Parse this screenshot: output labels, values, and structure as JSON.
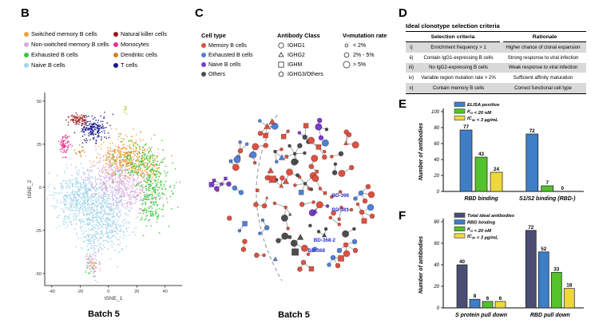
{
  "panels": {
    "b": {
      "label": "B",
      "caption": "Batch 5",
      "legend_col1": [
        {
          "label": "Switched memory B cells",
          "color": "#f2a136"
        },
        {
          "label": "Non-switched memory B cells",
          "color": "#dda6de"
        },
        {
          "label": "Exhausted B cells",
          "color": "#33cb33"
        },
        {
          "label": "Naive B cells",
          "color": "#a3d5e9"
        }
      ],
      "legend_col2": [
        {
          "label": "Natural killer cells",
          "color": "#991717"
        },
        {
          "label": "Monocytes",
          "color": "#ef2f8e"
        },
        {
          "label": "Dendritic cells",
          "color": "#d9801f"
        },
        {
          "label": "T cells",
          "color": "#19198e"
        }
      ]
    },
    "c": {
      "label": "C",
      "caption": "Batch 5",
      "cell_type": {
        "header": "Cell type",
        "items": [
          {
            "label": "Memory B cells",
            "color": "#dd5140"
          },
          {
            "label": "Exhausted B cells",
            "color": "#5080d2"
          },
          {
            "label": "Naive B cells",
            "color": "#7b3bcb"
          },
          {
            "label": "Others",
            "color": "#4d4d4d"
          }
        ]
      },
      "antibody_class": {
        "header": "Antibody Class",
        "items": [
          {
            "label": "IGHG1",
            "shape": "circle"
          },
          {
            "label": "IGHG2",
            "shape": "triangle"
          },
          {
            "label": "IGHM",
            "shape": "square"
          },
          {
            "label": "IGHG3/Others",
            "shape": "pentagon"
          }
        ]
      },
      "mutation_rate": {
        "header": "VH mutation rate",
        "header_parts": [
          [
            "t",
            "V"
          ],
          [
            "s",
            "H"
          ],
          [
            "t",
            " mutation rate"
          ]
        ],
        "items": [
          {
            "label": "< 2%",
            "size": 1.9
          },
          {
            "label": "2% - 5%",
            "size": 2.9
          },
          {
            "label": "> 5%",
            "size": 4.1
          }
        ]
      }
    },
    "d": {
      "label": "D",
      "title": "Ideal clonotype selection criteria",
      "col_headers": [
        "Selection criteria",
        "Rationale"
      ],
      "rows": [
        {
          "num": "i)",
          "criteria": "Enrichment frequency > 1",
          "rationale": "Higher chance of clonal expansion",
          "shaded": true
        },
        {
          "num": "ii)",
          "criteria": "Contain IgG1-expressing B cells",
          "rationale": "Strong response to viral infection",
          "shaded": false
        },
        {
          "num": "iii)",
          "criteria": "No IgG2-expressing B cells",
          "rationale": "Weak response to viral infection",
          "shaded": true
        },
        {
          "num": "iv)",
          "criteria": "Variable region mutation rate > 2%",
          "rationale": "Sufficient affinity maturation",
          "shaded": false
        },
        {
          "num": "v)",
          "criteria": "Contain memory B cells",
          "rationale": "Correct functional cell type",
          "shaded": true
        }
      ]
    },
    "e": {
      "label": "E"
    },
    "f": {
      "label": "F"
    }
  },
  "chart_data": [
    {
      "id": "tsne",
      "type": "scatter",
      "panel": "B",
      "title": "Batch 5",
      "xlabel": "tSNE_1",
      "ylabel": "tSNE_2",
      "xlim": [
        -45,
        52
      ],
      "ylim": [
        -57,
        55
      ],
      "xticks": [
        -40,
        -20,
        0,
        20,
        40
      ],
      "yticks": [
        -50,
        -25,
        0,
        25,
        50
      ],
      "grid": false,
      "clusters": [
        {
          "cell_type": "Naive B cells",
          "color": "#a3d5e9",
          "cx": -14,
          "cy": -8,
          "sx": 12,
          "sy": 9,
          "n": 520
        },
        {
          "cell_type": "Naive B cells",
          "color": "#a3d5e9",
          "cx": -2,
          "cy": -20,
          "sx": 9,
          "sy": 8,
          "n": 380
        },
        {
          "cell_type": "Naive B cells",
          "color": "#a3d5e9",
          "cx": -25,
          "cy": -4,
          "sx": 6,
          "sy": 7,
          "n": 140
        },
        {
          "cell_type": "Naive B cells",
          "color": "#a3d5e9",
          "cx": -12,
          "cy": -32,
          "sx": 3.5,
          "sy": 5,
          "n": 70
        },
        {
          "cell_type": "Non-switched memory B cells",
          "color": "#dda6de",
          "cx": 3,
          "cy": 5,
          "sx": 9,
          "sy": 7,
          "n": 320
        },
        {
          "cell_type": "Non-switched memory B cells",
          "color": "#dda6de",
          "cx": 18,
          "cy": -3,
          "sx": 9,
          "sy": 6,
          "n": 190
        },
        {
          "cell_type": "Non-switched memory B cells",
          "color": "#dda6de",
          "cx": -11,
          "cy": -44,
          "sx": 2.5,
          "sy": 4,
          "n": 60
        },
        {
          "cell_type": "Switched memory B cells",
          "color": "#f2a136",
          "cx": 10,
          "cy": 18,
          "sx": 9,
          "sy": 6,
          "n": 290
        },
        {
          "cell_type": "Switched memory B cells",
          "color": "#f2a136",
          "cx": 26,
          "cy": 12,
          "sx": 7,
          "sy": 5,
          "n": 120
        },
        {
          "cell_type": "Switched memory B cells",
          "color": "#f2a136",
          "cx": -11,
          "cy": -46,
          "sx": 2,
          "sy": 3,
          "n": 12
        },
        {
          "cell_type": "Exhausted B cells",
          "color": "#33cb33",
          "cx": 32,
          "cy": 0,
          "sx": 6,
          "sy": 9,
          "n": 210
        },
        {
          "cell_type": "Exhausted B cells",
          "color": "#33cb33",
          "cx": 20,
          "cy": 16,
          "sx": 9,
          "sy": 6,
          "n": 140
        },
        {
          "cell_type": "Exhausted B cells",
          "color": "#33cb33",
          "cx": 30,
          "cy": -14,
          "sx": 4,
          "sy": 4,
          "n": 60
        },
        {
          "cell_type": "Exhausted B cells",
          "color": "#33cb33",
          "cx": -13,
          "cy": -47,
          "sx": 2,
          "sy": 3,
          "n": 12
        },
        {
          "cell_type": "T cells",
          "color": "#19198e",
          "cx": -10,
          "cy": 34,
          "sx": 5,
          "sy": 3.5,
          "n": 180
        },
        {
          "cell_type": "Natural killer cells",
          "color": "#991717",
          "cx": -22,
          "cy": 39,
          "sx": 2.8,
          "sy": 2,
          "n": 80
        },
        {
          "cell_type": "Monocytes",
          "color": "#ef2f8e",
          "cx": -31,
          "cy": 24,
          "sx": 1.8,
          "sy": 3,
          "n": 70
        },
        {
          "cell_type": "Dendritic cells",
          "color": "#d9801f",
          "cx": -20,
          "cy": 21,
          "sx": 1.6,
          "sy": 2,
          "n": 16
        },
        {
          "cell_type": "Dendritic cells",
          "color": "#d9801f",
          "cx": 12,
          "cy": 19,
          "sx": 7,
          "sy": 4,
          "n": 24
        },
        {
          "cell_type": "Other",
          "color": "#b9c927",
          "cx": 12,
          "cy": 46,
          "sx": 0.8,
          "sy": 1.8,
          "n": 8
        }
      ]
    },
    {
      "id": "clonotype-network",
      "type": "network",
      "panel": "C",
      "title": "Batch 5",
      "node_colors": {
        "red": "#dd5140",
        "blue": "#5080d2",
        "gray": "#4d4d4d",
        "purple": "#7b3bcb"
      },
      "labeled_antibodies": [
        "BD-396",
        "BD-361",
        "BD-368-2",
        "BD-368"
      ],
      "label_color": "#2a2ad0",
      "highlights": [
        {
          "name": "BD-396",
          "label_x": 197,
          "label_y": 133,
          "cx": 212,
          "cy": 128,
          "nodes": [
            [
              0,
              0,
              "blue",
              "circle",
              3
            ],
            [
              9,
              -8,
              "red",
              "circle",
              3
            ],
            [
              13,
              2,
              "red",
              "circle",
              4
            ],
            [
              5,
              10,
              "red",
              "circle",
              3
            ],
            [
              -7,
              7,
              "blue",
              "circle",
              2.5
            ]
          ]
        },
        {
          "name": "BD-361",
          "label_x": 197,
          "label_y": 151,
          "cx": 213,
          "cy": 152,
          "nodes": [
            [
              0,
              0,
              "red",
              "circle",
              3
            ],
            [
              11,
              -6,
              "blue",
              "circle",
              4
            ],
            [
              13,
              5,
              "red",
              "circle",
              3
            ],
            [
              3,
              11,
              "red",
              "square",
              3.2
            ],
            [
              -5,
              -10,
              "red",
              "circle",
              2
            ]
          ]
        },
        {
          "name": "BD-368-2",
          "label_x": 180,
          "label_y": 189,
          "cx": 193,
          "cy": 193,
          "nodes": [
            [
              0,
              0,
              "red",
              "circle",
              3
            ],
            [
              11,
              -4,
              "blue",
              "circle",
              3
            ],
            [
              12,
              7,
              "red",
              "circle",
              3
            ],
            [
              1,
              11,
              "red",
              "circle",
              4
            ],
            [
              -8,
              7,
              "blue",
              "circle",
              3
            ]
          ]
        },
        {
          "name": "BD-368",
          "label_x": 167,
          "label_y": 202,
          "cx": 177,
          "cy": 209,
          "nodes": [
            [
              0,
              0,
              "blue",
              "circle",
              3
            ],
            [
              10,
              1,
              "red",
              "square",
              3.6
            ],
            [
              6,
              10,
              "red",
              "circle",
              3
            ],
            [
              -5,
              9,
              "blue",
              "circle",
              2.5
            ]
          ]
        }
      ],
      "generator": {
        "seed": 11,
        "clusters": 56,
        "center_x": 128,
        "center_y": 128,
        "radius": 104,
        "color_weights": {
          "red": 0.58,
          "blue": 0.22,
          "gray": 0.16,
          "purple": 0.04
        },
        "shape_weights": {
          "circle": 0.8,
          "square": 0.13,
          "triangle": 0.07
        },
        "size_options": [
          2,
          3,
          4.2
        ],
        "size_weights": [
          0.42,
          0.36,
          0.22
        ],
        "cluster_size_weights": [
          0.14,
          0.34,
          0.2,
          0.12,
          0.09,
          0.06,
          0.03,
          0.02
        ]
      }
    },
    {
      "id": "binding",
      "type": "bar",
      "panel": "E",
      "categories": [
        "RBD binding",
        "S1/S2 binding (RBD-)"
      ],
      "series": [
        {
          "name": "ELISA positive",
          "name_parts": [
            [
              "t",
              "ELISA positive"
            ]
          ],
          "color": "#3d7ec6",
          "values": [
            77,
            72
          ]
        },
        {
          "name": "KD < 20 nM",
          "name_parts": [
            [
              "t",
              "K"
            ],
            [
              "s",
              "D"
            ],
            [
              "t",
              " < 20 nM"
            ]
          ],
          "color": "#54c22a",
          "values": [
            43,
            7
          ]
        },
        {
          "name": "IC50 < 3 µg/mL",
          "name_parts": [
            [
              "t",
              "IC"
            ],
            [
              "s",
              "50"
            ],
            [
              "t",
              " < 3 µg/mL"
            ]
          ],
          "color": "#ecd83e",
          "values": [
            24,
            0
          ]
        }
      ],
      "ylabel": "Number of antibodies",
      "ylim": [
        0,
        100
      ],
      "yticks": [
        0,
        20,
        40,
        60,
        80,
        100
      ],
      "grid": false,
      "legend_position": "top-left"
    },
    {
      "id": "pulldown",
      "type": "bar",
      "panel": "F",
      "categories": [
        "S protein pull down",
        "RBD pull down"
      ],
      "series": [
        {
          "name": "Total ideal antibodies",
          "name_parts": [
            [
              "t",
              "Total ideal antibodies"
            ]
          ],
          "color": "#4c4c74",
          "values": [
            40,
            72
          ]
        },
        {
          "name": "RBD binding",
          "name_parts": [
            [
              "t",
              "RBD binding"
            ]
          ],
          "color": "#3d7ec6",
          "values": [
            8,
            52
          ]
        },
        {
          "name": "KD < 20 nM",
          "name_parts": [
            [
              "t",
              "K"
            ],
            [
              "s",
              "D"
            ],
            [
              "t",
              " < 20 nM"
            ]
          ],
          "color": "#54c22a",
          "values": [
            6,
            33
          ]
        },
        {
          "name": "IC50 < 3 µg/mL",
          "name_parts": [
            [
              "t",
              "IC"
            ],
            [
              "s",
              "50"
            ],
            [
              "t",
              " < 3 µg/mL"
            ]
          ],
          "color": "#ecd83e",
          "values": [
            6,
            18
          ]
        }
      ],
      "ylabel": "Number of antibodies",
      "ylim": [
        0,
        80
      ],
      "yticks": [
        0,
        20,
        40,
        60,
        80
      ],
      "grid": false,
      "legend_position": "top-left"
    }
  ]
}
